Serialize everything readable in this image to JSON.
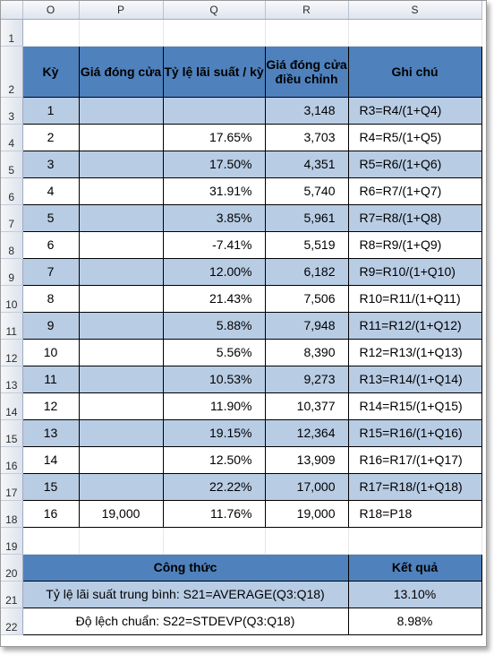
{
  "columns": [
    "O",
    "P",
    "Q",
    "R",
    "S"
  ],
  "row_numbers": [
    "1",
    "2",
    "3",
    "4",
    "5",
    "6",
    "7",
    "8",
    "9",
    "10",
    "11",
    "12",
    "13",
    "14",
    "15",
    "16",
    "17",
    "18",
    "19",
    "20",
    "21",
    "22"
  ],
  "headers": {
    "ky": "Kỳ",
    "gia_dong_cua": "Giá đóng cửa",
    "ty_le": "Tỷ lệ lãi suất / kỳ",
    "gia_dieu_chinh": "Giá đóng cửa điều chỉnh",
    "ghi_chu": "Ghi chú"
  },
  "rows": [
    {
      "ky": "1",
      "gia": "",
      "rate": "",
      "adj": "3,148",
      "note": "R3=R4/(1+Q4)"
    },
    {
      "ky": "2",
      "gia": "",
      "rate": "17.65%",
      "adj": "3,703",
      "note": "R4=R5/(1+Q5)"
    },
    {
      "ky": "3",
      "gia": "",
      "rate": "17.50%",
      "adj": "4,351",
      "note": "R5=R6/(1+Q6)"
    },
    {
      "ky": "4",
      "gia": "",
      "rate": "31.91%",
      "adj": "5,740",
      "note": "R6=R7/(1+Q7)"
    },
    {
      "ky": "5",
      "gia": "",
      "rate": "3.85%",
      "adj": "5,961",
      "note": "R7=R8/(1+Q8)"
    },
    {
      "ky": "6",
      "gia": "",
      "rate": "-7.41%",
      "adj": "5,519",
      "note": "R8=R9/(1+Q9)"
    },
    {
      "ky": "7",
      "gia": "",
      "rate": "12.00%",
      "adj": "6,182",
      "note": "R9=R10/(1+Q10)"
    },
    {
      "ky": "8",
      "gia": "",
      "rate": "21.43%",
      "adj": "7,506",
      "note": "R10=R11/(1+Q11)"
    },
    {
      "ky": "9",
      "gia": "",
      "rate": "5.88%",
      "adj": "7,948",
      "note": "R11=R12/(1+Q12)"
    },
    {
      "ky": "10",
      "gia": "",
      "rate": "5.56%",
      "adj": "8,390",
      "note": "R12=R13/(1+Q13)"
    },
    {
      "ky": "11",
      "gia": "",
      "rate": "10.53%",
      "adj": "9,273",
      "note": "R13=R14/(1+Q14)"
    },
    {
      "ky": "12",
      "gia": "",
      "rate": "11.90%",
      "adj": "10,377",
      "note": "R14=R15/(1+Q15)"
    },
    {
      "ky": "13",
      "gia": "",
      "rate": "19.15%",
      "adj": "12,364",
      "note": "R15=R16/(1+Q16)"
    },
    {
      "ky": "14",
      "gia": "",
      "rate": "12.50%",
      "adj": "13,909",
      "note": "R16=R17/(1+Q17)"
    },
    {
      "ky": "15",
      "gia": "",
      "rate": "22.22%",
      "adj": "17,000",
      "note": "R17=R18/(1+Q18)"
    },
    {
      "ky": "16",
      "gia": "19,000",
      "rate": "11.76%",
      "adj": "19,000",
      "note": "R18=P18"
    }
  ],
  "summary": {
    "header_formula": "Công thức",
    "header_result": "Kết quả",
    "row21_formula": "Tỷ lệ lãi suất trung bình: S21=AVERAGE(Q3:Q18)",
    "row21_result": "13.10%",
    "row22_formula": "Độ lệch chuẩn: S22=STDEVP(Q3:Q18)",
    "row22_result": "8.98%"
  },
  "colors": {
    "header_fill": "#4f81bd",
    "band_fill": "#b8cce4",
    "plain_fill": "#ffffff"
  }
}
